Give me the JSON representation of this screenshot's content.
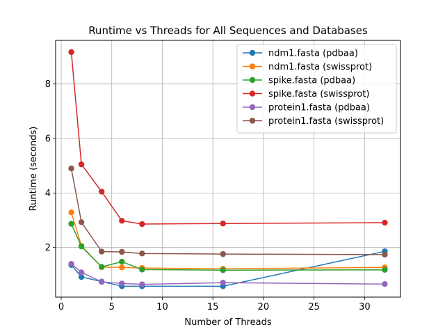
{
  "chart_data": {
    "type": "line",
    "title": "Runtime vs Threads for All Sequences and Databases",
    "xlabel": "Number of Threads",
    "ylabel": "Runtime (seconds)",
    "xlim": [
      -0.55,
      33.55
    ],
    "ylim": [
      0.18,
      9.6
    ],
    "xticks": [
      0,
      5,
      10,
      15,
      20,
      25,
      30
    ],
    "yticks": [
      2,
      4,
      6,
      8
    ],
    "grid": true,
    "legend_position": "top-right",
    "x": [
      1,
      2,
      4,
      6,
      8,
      16,
      32
    ],
    "series": [
      {
        "name": "ndm1.fasta (pdbaa)",
        "color": "#1f77b4",
        "values": [
          1.36,
          0.92,
          0.75,
          0.58,
          0.58,
          0.58,
          1.86
        ]
      },
      {
        "name": "ndm1.fasta (swissprot)",
        "color": "#ff7f0e",
        "values": [
          3.29,
          2.06,
          1.28,
          1.27,
          1.25,
          1.22,
          1.27
        ]
      },
      {
        "name": "spike.fasta (pdbaa)",
        "color": "#2ca02c",
        "values": [
          2.87,
          2.04,
          1.29,
          1.48,
          1.19,
          1.17,
          1.18
        ]
      },
      {
        "name": "spike.fasta (swissprot)",
        "color": "#d62728",
        "values": [
          9.17,
          5.05,
          4.05,
          2.98,
          2.86,
          2.88,
          2.91
        ]
      },
      {
        "name": "protein1.fasta (pdbaa)",
        "color": "#9467bd",
        "values": [
          1.4,
          1.09,
          0.74,
          0.68,
          0.65,
          0.71,
          0.66
        ]
      },
      {
        "name": "protein1.fasta (swissprot)",
        "color": "#8c564b",
        "values": [
          4.9,
          2.93,
          1.85,
          1.84,
          1.78,
          1.76,
          1.74
        ]
      }
    ]
  }
}
